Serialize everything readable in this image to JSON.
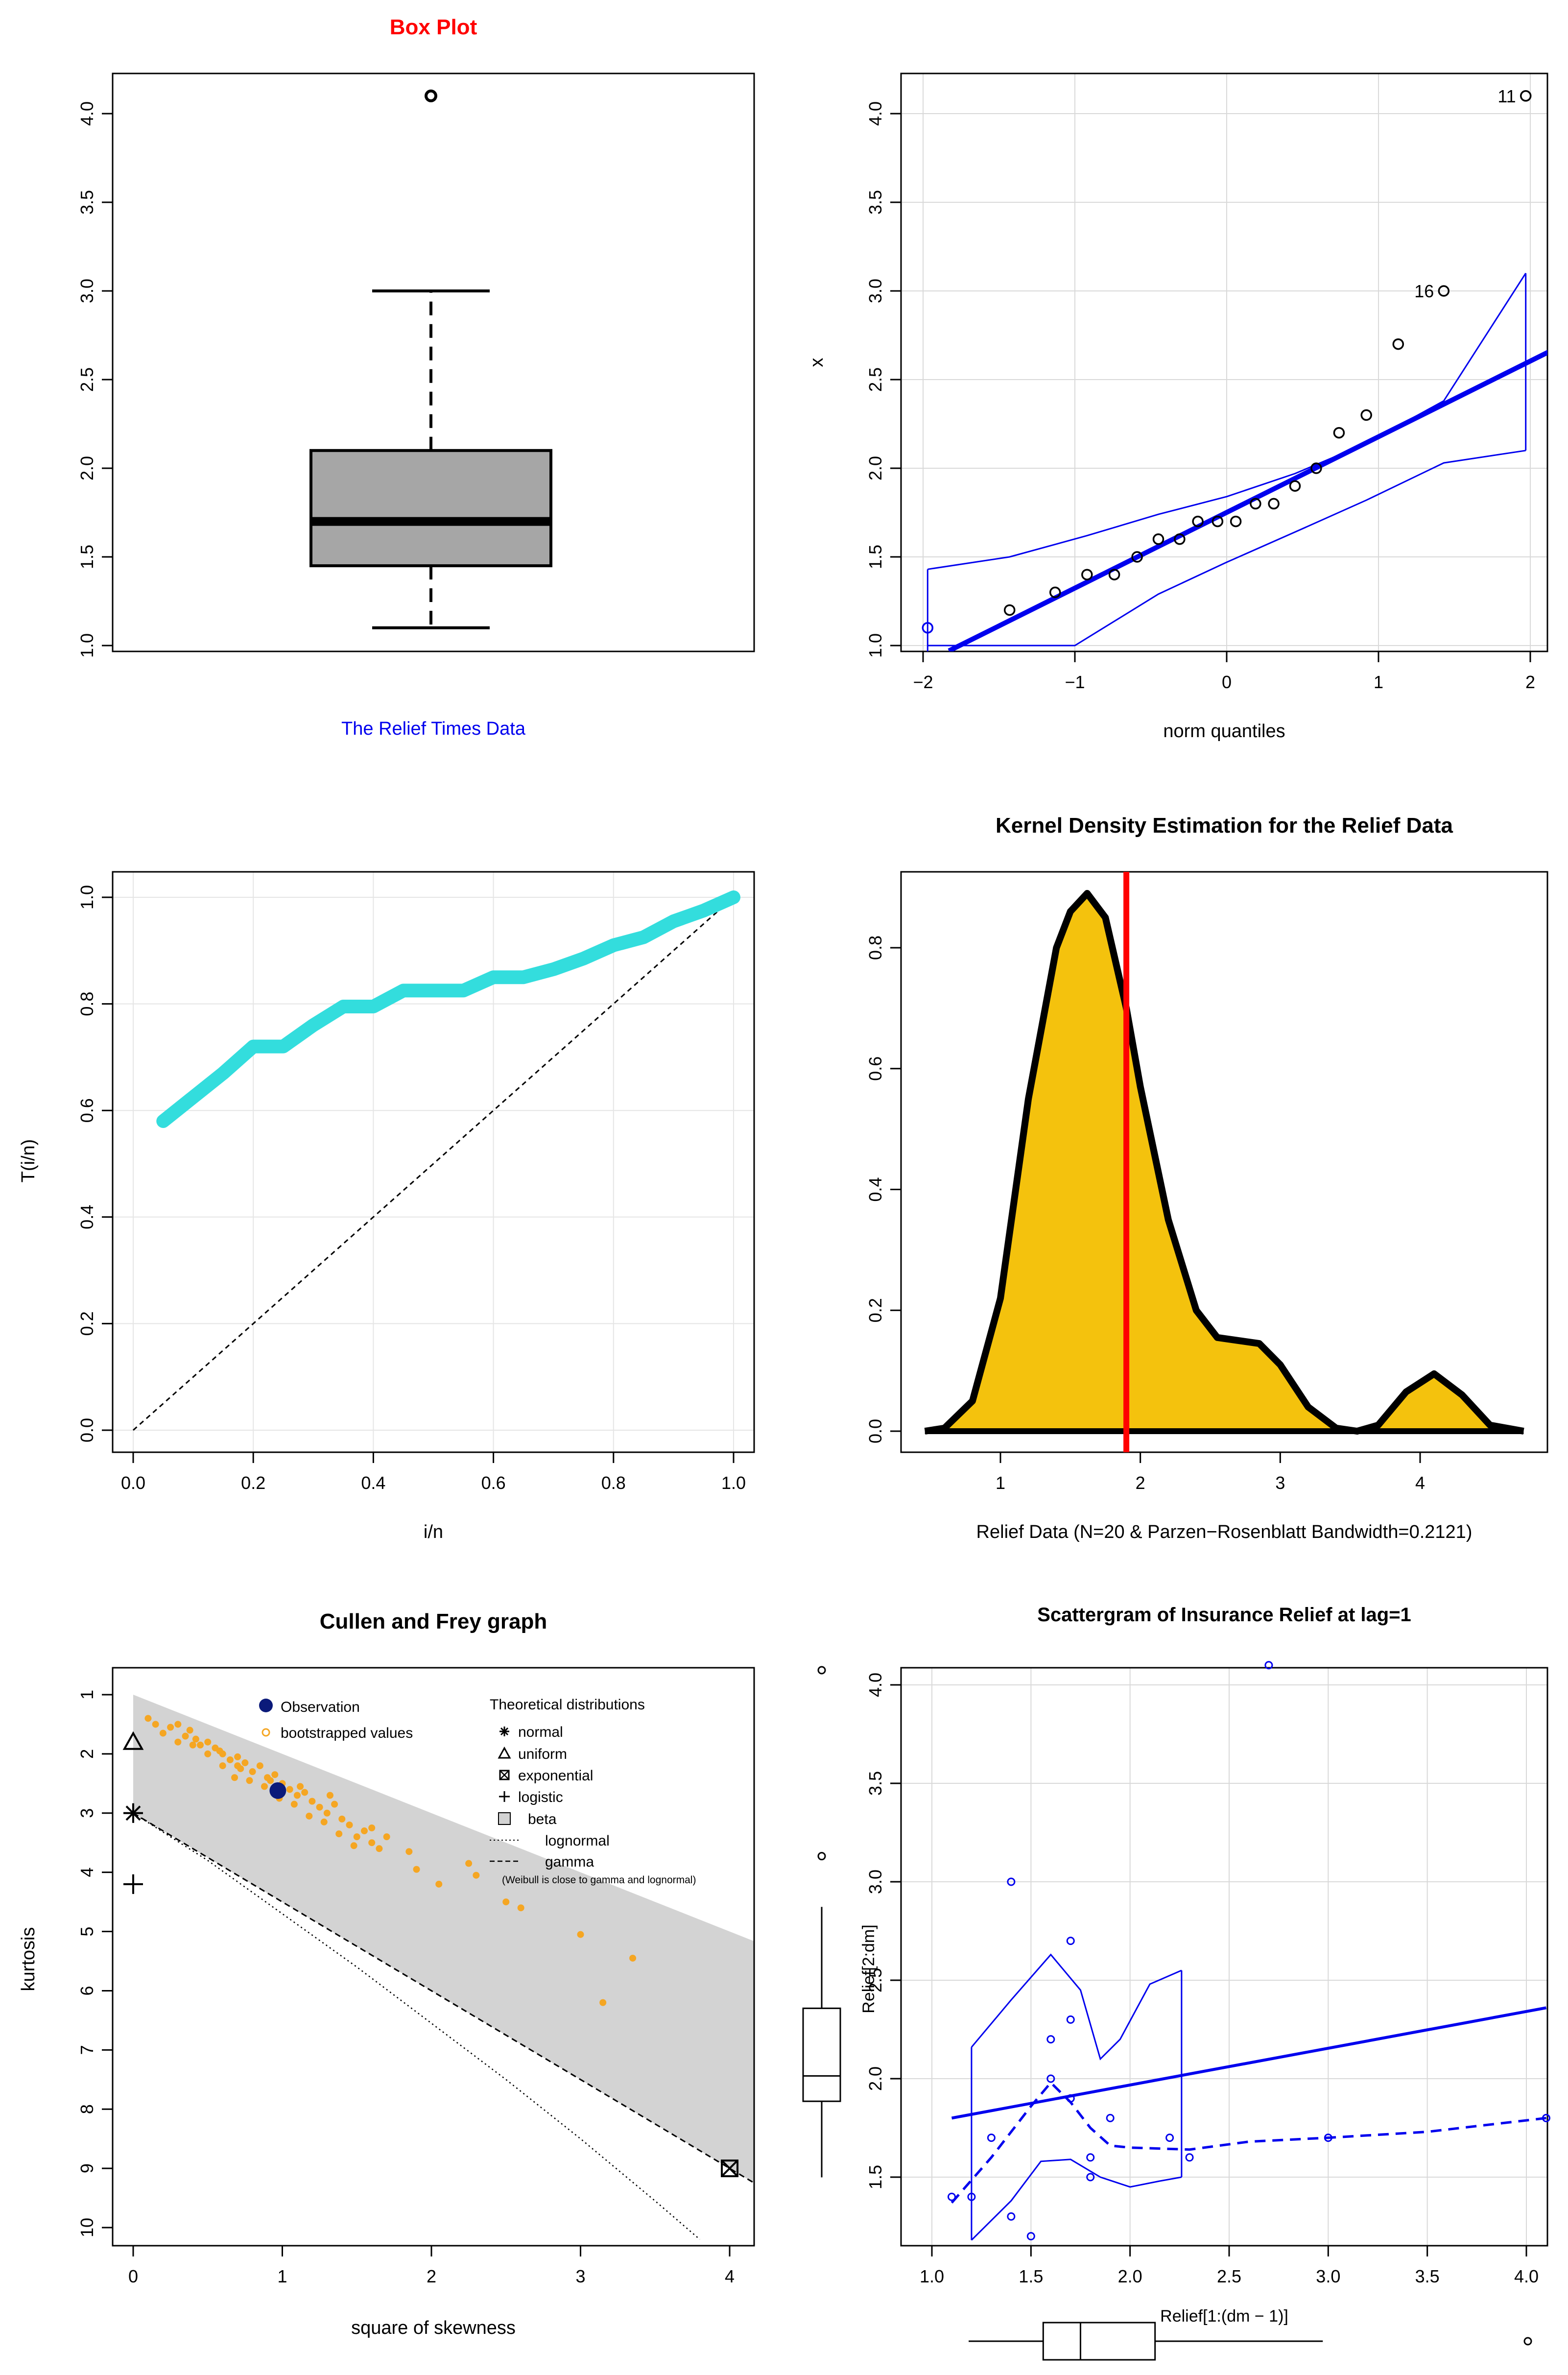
{
  "colors": {
    "red": "#ff0000",
    "blue": "#0000ee",
    "cyan": "#33dddd",
    "gold": "#f4c20d",
    "orange": "#f5a623",
    "navy": "#0b1a7a",
    "gray": "#d3d3d3",
    "boxgray": "#a6a6a6"
  },
  "chart_data": [
    {
      "type": "box",
      "title": "Box Plot",
      "xlabel": "The Relief Times Data",
      "ylim": [
        1.0,
        4.0
      ],
      "yticks": [
        "1.0",
        "1.5",
        "2.0",
        "2.5",
        "3.0",
        "3.5",
        "4.0"
      ],
      "stats": {
        "min": 1.1,
        "q1": 1.45,
        "median": 1.7,
        "q3": 2.1,
        "max": 3.0
      },
      "outliers": [
        4.1
      ]
    },
    {
      "type": "scatter",
      "title": "",
      "xlabel": "norm quantiles",
      "ylabel": "x",
      "xticks": [
        "−2",
        "−1",
        "0",
        "1",
        "2"
      ],
      "yticks": [
        "1.0",
        "1.5",
        "2.0",
        "2.5",
        "3.0",
        "3.5",
        "4.0"
      ],
      "points": [
        [
          -1.97,
          1.1
        ],
        [
          -1.43,
          1.2
        ],
        [
          -1.13,
          1.3
        ],
        [
          -0.92,
          1.4
        ],
        [
          -0.74,
          1.4
        ],
        [
          -0.59,
          1.5
        ],
        [
          -0.45,
          1.6
        ],
        [
          -0.31,
          1.6
        ],
        [
          -0.19,
          1.7
        ],
        [
          -0.06,
          1.7
        ],
        [
          0.06,
          1.7
        ],
        [
          0.19,
          1.8
        ],
        [
          0.31,
          1.8
        ],
        [
          0.45,
          1.9
        ],
        [
          0.59,
          2.0
        ],
        [
          0.74,
          2.2
        ],
        [
          0.92,
          2.3
        ],
        [
          1.13,
          2.7
        ],
        [
          1.43,
          3.0
        ],
        [
          1.97,
          4.1
        ]
      ],
      "fit_line": [
        [
          -1.83,
          0.97
        ],
        [
          2.13,
          2.66
        ]
      ],
      "upper_band": [
        [
          -1.97,
          1.43
        ],
        [
          -1.43,
          1.5
        ],
        [
          -0.92,
          1.62
        ],
        [
          -0.45,
          1.74
        ],
        [
          0.0,
          1.84
        ],
        [
          0.45,
          1.97
        ],
        [
          0.92,
          2.14
        ],
        [
          1.43,
          2.38
        ],
        [
          1.97,
          3.1
        ]
      ],
      "lower_band": [
        [
          -1.97,
          1.0
        ],
        [
          -1.0,
          1.0
        ],
        [
          -0.45,
          1.29
        ],
        [
          0.0,
          1.47
        ],
        [
          0.45,
          1.64
        ],
        [
          0.92,
          1.82
        ],
        [
          1.43,
          2.03
        ],
        [
          1.97,
          2.1
        ]
      ],
      "labels": [
        {
          "text": "11",
          "x": 1.97,
          "y": 4.1
        },
        {
          "text": "16",
          "x": 1.43,
          "y": 3.0
        }
      ]
    },
    {
      "type": "line",
      "title": "",
      "xlabel": "i/n",
      "ylabel": "T(i/n)",
      "xticks": [
        "0.0",
        "0.2",
        "0.4",
        "0.6",
        "0.8",
        "1.0"
      ],
      "yticks": [
        "0.0",
        "0.2",
        "0.4",
        "0.6",
        "0.8",
        "1.0"
      ],
      "points": [
        [
          0.05,
          0.58
        ],
        [
          0.1,
          0.625
        ],
        [
          0.15,
          0.67
        ],
        [
          0.2,
          0.72
        ],
        [
          0.25,
          0.72
        ],
        [
          0.3,
          0.76
        ],
        [
          0.35,
          0.795
        ],
        [
          0.4,
          0.795
        ],
        [
          0.45,
          0.825
        ],
        [
          0.5,
          0.825
        ],
        [
          0.55,
          0.825
        ],
        [
          0.6,
          0.85
        ],
        [
          0.65,
          0.85
        ],
        [
          0.7,
          0.865
        ],
        [
          0.75,
          0.885
        ],
        [
          0.8,
          0.91
        ],
        [
          0.85,
          0.925
        ],
        [
          0.9,
          0.955
        ],
        [
          0.95,
          0.975
        ],
        [
          1.0,
          1.0
        ]
      ],
      "reference": [
        [
          0,
          0
        ],
        [
          1,
          1
        ]
      ]
    },
    {
      "type": "area",
      "title": "Kernel Density Estimation for the Relief Data",
      "xlabel": "Relief Data (N=20 & Parzen−Rosenblatt Bandwidth=0.2121)",
      "ylabel": "",
      "xticks": [
        "1",
        "2",
        "3",
        "4"
      ],
      "yticks": [
        "0.0",
        "0.2",
        "0.4",
        "0.6",
        "0.8"
      ],
      "density": [
        [
          0.46,
          0.0
        ],
        [
          0.6,
          0.005
        ],
        [
          0.8,
          0.05
        ],
        [
          1.0,
          0.22
        ],
        [
          1.2,
          0.55
        ],
        [
          1.4,
          0.8
        ],
        [
          1.5,
          0.86
        ],
        [
          1.62,
          0.89
        ],
        [
          1.75,
          0.85
        ],
        [
          1.9,
          0.7
        ],
        [
          2.0,
          0.57
        ],
        [
          2.2,
          0.35
        ],
        [
          2.4,
          0.2
        ],
        [
          2.55,
          0.155
        ],
        [
          2.7,
          0.15
        ],
        [
          2.85,
          0.145
        ],
        [
          3.0,
          0.11
        ],
        [
          3.2,
          0.04
        ],
        [
          3.4,
          0.005
        ],
        [
          3.55,
          0.0
        ],
        [
          3.7,
          0.01
        ],
        [
          3.9,
          0.065
        ],
        [
          4.1,
          0.095
        ],
        [
          4.3,
          0.06
        ],
        [
          4.5,
          0.01
        ],
        [
          4.74,
          0.0
        ]
      ],
      "mean_line": 1.9
    },
    {
      "type": "scatter",
      "title": "Cullen and Frey graph",
      "xlabel": "square of skewness",
      "ylabel": "kurtosis",
      "xticks": [
        "0",
        "1",
        "2",
        "3",
        "4"
      ],
      "yticks": [
        "1",
        "2",
        "3",
        "4",
        "5",
        "6",
        "7",
        "8",
        "9",
        "10"
      ],
      "observation": [
        0.97,
        2.62
      ],
      "bootstrap": [
        [
          0.1,
          1.4
        ],
        [
          0.15,
          1.5
        ],
        [
          0.2,
          1.65
        ],
        [
          0.25,
          1.55
        ],
        [
          0.3,
          1.8
        ],
        [
          0.35,
          1.7
        ],
        [
          0.38,
          1.6
        ],
        [
          0.42,
          1.75
        ],
        [
          0.45,
          1.85
        ],
        [
          0.5,
          1.8
        ],
        [
          0.55,
          1.9
        ],
        [
          0.6,
          2.0
        ],
        [
          0.65,
          2.1
        ],
        [
          0.7,
          2.05
        ],
        [
          0.72,
          2.25
        ],
        [
          0.75,
          2.15
        ],
        [
          0.8,
          2.3
        ],
        [
          0.85,
          2.2
        ],
        [
          0.9,
          2.4
        ],
        [
          0.95,
          2.35
        ],
        [
          1.0,
          2.5
        ],
        [
          1.05,
          2.6
        ],
        [
          1.1,
          2.7
        ],
        [
          1.15,
          2.65
        ],
        [
          1.2,
          2.8
        ],
        [
          1.25,
          2.9
        ],
        [
          1.3,
          3.0
        ],
        [
          1.35,
          2.85
        ],
        [
          1.4,
          3.1
        ],
        [
          1.45,
          3.2
        ],
        [
          1.5,
          3.4
        ],
        [
          1.55,
          3.3
        ],
        [
          1.6,
          3.5
        ],
        [
          1.65,
          3.6
        ],
        [
          0.5,
          2.0
        ],
        [
          0.6,
          2.2
        ],
        [
          0.68,
          2.4
        ],
        [
          0.78,
          2.45
        ],
        [
          0.88,
          2.55
        ],
        [
          0.98,
          2.75
        ],
        [
          1.08,
          2.85
        ],
        [
          1.18,
          3.05
        ],
        [
          1.28,
          3.15
        ],
        [
          1.38,
          3.35
        ],
        [
          1.48,
          3.55
        ],
        [
          1.6,
          3.25
        ],
        [
          1.7,
          3.4
        ],
        [
          1.85,
          3.65
        ],
        [
          1.9,
          3.95
        ],
        [
          2.05,
          4.2
        ],
        [
          2.25,
          3.85
        ],
        [
          2.3,
          4.05
        ],
        [
          2.5,
          4.5
        ],
        [
          2.6,
          4.6
        ],
        [
          3.0,
          5.05
        ],
        [
          3.35,
          5.45
        ],
        [
          3.15,
          6.2
        ],
        [
          0.3,
          1.5
        ],
        [
          0.4,
          1.85
        ],
        [
          0.58,
          1.95
        ],
        [
          0.7,
          2.2
        ],
        [
          0.92,
          2.45
        ],
        [
          1.12,
          2.55
        ],
        [
          1.32,
          2.7
        ]
      ],
      "theoretical": {
        "normal": [
          0,
          3
        ],
        "uniform": [
          0,
          1.8
        ],
        "exponential": [
          4,
          9
        ],
        "logistic": [
          0,
          4.2
        ]
      },
      "legend_left": {
        "observation": "Observation",
        "bootstrap": "bootstrapped values"
      },
      "legend_right": {
        "title": "Theoretical distributions",
        "items": [
          "normal",
          "uniform",
          "exponential",
          "logistic",
          "beta",
          "lognormal",
          "gamma"
        ],
        "note": "(Weibull is close to gamma and lognormal)"
      }
    },
    {
      "type": "scatter",
      "title": "Scattergram of Insurance Relief at lag=1",
      "xlabel": "Relief[1:(dm − 1)]",
      "ylabel": "Relief[2:dm]",
      "xticks": [
        "1.0",
        "1.5",
        "2.0",
        "2.5",
        "3.0",
        "3.5",
        "4.0"
      ],
      "yticks": [
        "1.5",
        "2.0",
        "2.5",
        "3.0",
        "3.5",
        "4.0"
      ],
      "points": [
        [
          1.1,
          1.4
        ],
        [
          1.2,
          1.4
        ],
        [
          1.3,
          1.7
        ],
        [
          1.4,
          3.0
        ],
        [
          1.4,
          1.3
        ],
        [
          1.5,
          1.2
        ],
        [
          1.6,
          2.2
        ],
        [
          1.6,
          2.0
        ],
        [
          1.7,
          2.7
        ],
        [
          1.7,
          2.3
        ],
        [
          1.7,
          1.9
        ],
        [
          1.8,
          1.6
        ],
        [
          1.8,
          1.5
        ],
        [
          1.9,
          1.8
        ],
        [
          2.2,
          1.7
        ],
        [
          2.3,
          1.6
        ],
        [
          2.7,
          4.1
        ],
        [
          3.0,
          1.7
        ],
        [
          4.1,
          1.8
        ]
      ],
      "fit_line": [
        [
          1.1,
          1.8
        ],
        [
          4.1,
          2.36
        ]
      ],
      "smooth": [
        [
          1.1,
          1.37
        ],
        [
          1.3,
          1.6
        ],
        [
          1.5,
          1.86
        ],
        [
          1.6,
          1.98
        ],
        [
          1.7,
          1.88
        ],
        [
          1.8,
          1.75
        ],
        [
          1.9,
          1.66
        ],
        [
          2.0,
          1.65
        ],
        [
          2.3,
          1.64
        ],
        [
          2.6,
          1.68
        ],
        [
          3.0,
          1.7
        ],
        [
          3.5,
          1.73
        ],
        [
          4.1,
          1.8
        ]
      ],
      "upper_band": [
        [
          1.2,
          2.16
        ],
        [
          1.4,
          2.4
        ],
        [
          1.6,
          2.63
        ],
        [
          1.75,
          2.45
        ],
        [
          1.85,
          2.1
        ],
        [
          1.95,
          2.2
        ],
        [
          2.1,
          2.48
        ],
        [
          2.26,
          2.55
        ]
      ],
      "lower_band": [
        [
          1.2,
          1.18
        ],
        [
          1.4,
          1.38
        ],
        [
          1.55,
          1.58
        ],
        [
          1.7,
          1.59
        ],
        [
          1.85,
          1.5
        ],
        [
          2.0,
          1.45
        ],
        [
          2.15,
          1.48
        ],
        [
          2.26,
          1.5
        ]
      ],
      "marginal_box_y": {
        "min": 1.1,
        "q1": 1.55,
        "median": 1.7,
        "q3": 2.1,
        "max": 2.7,
        "outliers": [
          3.0,
          4.1
        ]
      },
      "marginal_box_x": {
        "min": 1.1,
        "q1": 1.5,
        "median": 1.7,
        "q3": 2.1,
        "max": 3.0,
        "outliers": [
          4.1
        ]
      }
    }
  ]
}
